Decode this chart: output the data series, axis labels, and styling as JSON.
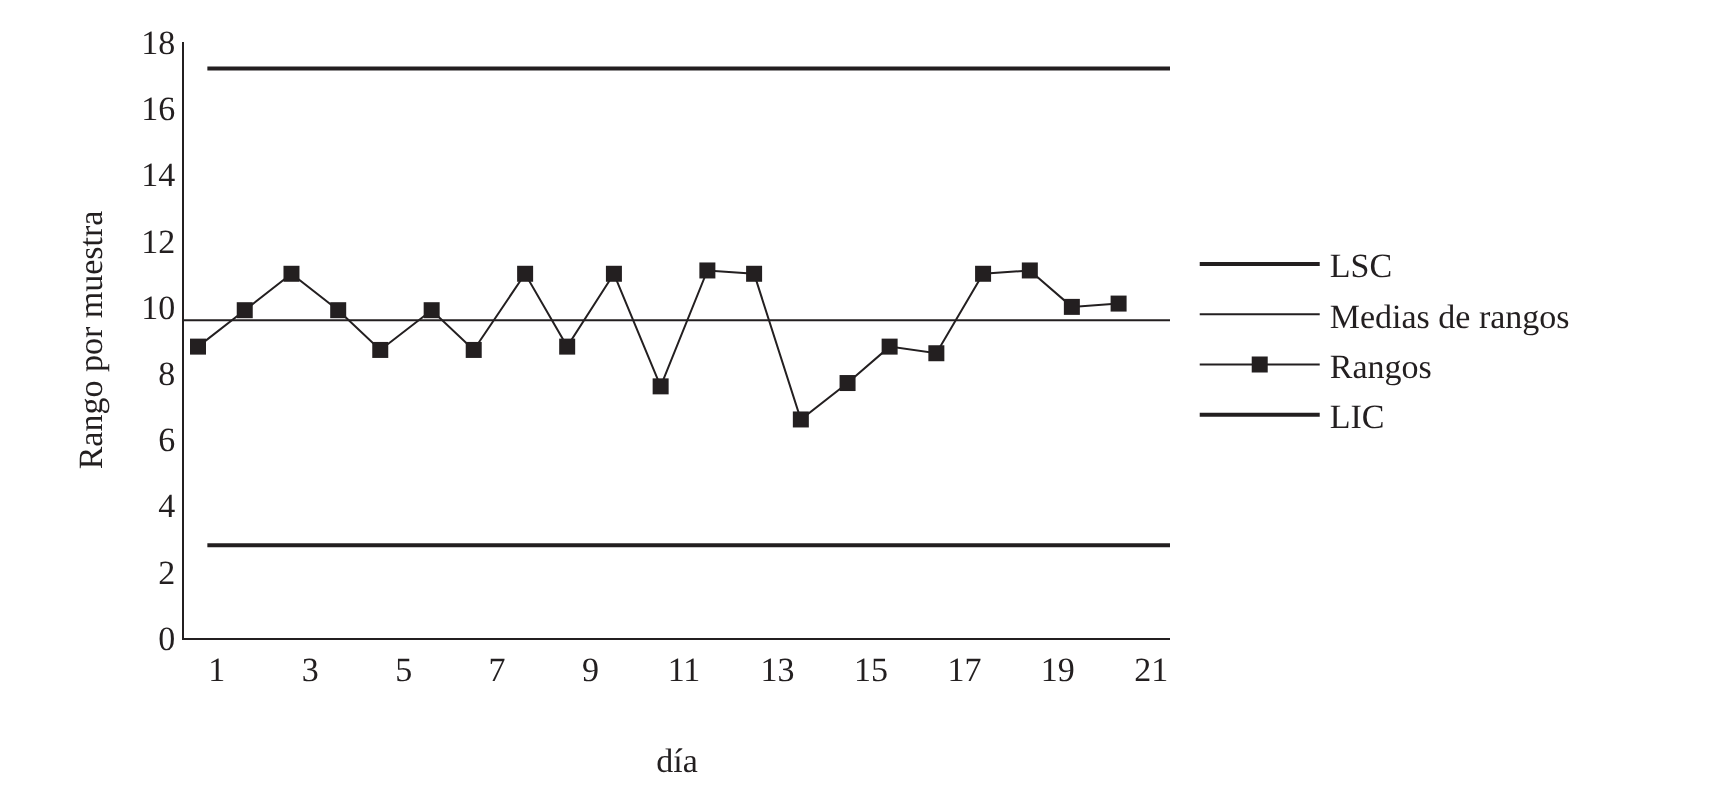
{
  "chart_data": {
    "type": "line",
    "xlabel": "día",
    "ylabel": "Rango por muestra",
    "xlim": [
      0.3,
      21.4
    ],
    "xticks": [
      1,
      3,
      5,
      7,
      9,
      11,
      13,
      15,
      17,
      19,
      21
    ],
    "ylim": [
      0,
      18
    ],
    "yticks": [
      0,
      2,
      4,
      6,
      8,
      10,
      12,
      14,
      16,
      18
    ],
    "grid": false,
    "legend": "right",
    "series": [
      {
        "name": "LSC",
        "color": "#231f20",
        "x": [
          0.8,
          21.4
        ],
        "values": [
          17.2,
          17.2
        ],
        "marker": "none"
      },
      {
        "name": "Medias de rangos",
        "color": "#231f20",
        "x": [
          0.3,
          21.4
        ],
        "values": [
          9.6,
          9.6
        ],
        "marker": "none"
      },
      {
        "name": "Rangos",
        "color": "#231f20",
        "marker": "square",
        "x": [
          0.6,
          1.6,
          2.6,
          3.6,
          4.5,
          5.6,
          6.5,
          7.6,
          8.5,
          9.5,
          10.5,
          11.5,
          12.5,
          13.5,
          14.5,
          15.4,
          16.4,
          17.4,
          18.4,
          19.3,
          20.3
        ],
        "values": [
          8.8,
          9.9,
          11.0,
          9.9,
          8.7,
          9.9,
          8.7,
          11.0,
          8.8,
          11.0,
          7.6,
          11.1,
          11.0,
          6.6,
          7.7,
          8.8,
          8.6,
          11.0,
          11.1,
          10.0,
          10.1
        ]
      },
      {
        "name": "LIC",
        "color": "#231f20",
        "x": [
          0.8,
          21.4
        ],
        "values": [
          2.8,
          2.8
        ],
        "marker": "none"
      }
    ]
  }
}
